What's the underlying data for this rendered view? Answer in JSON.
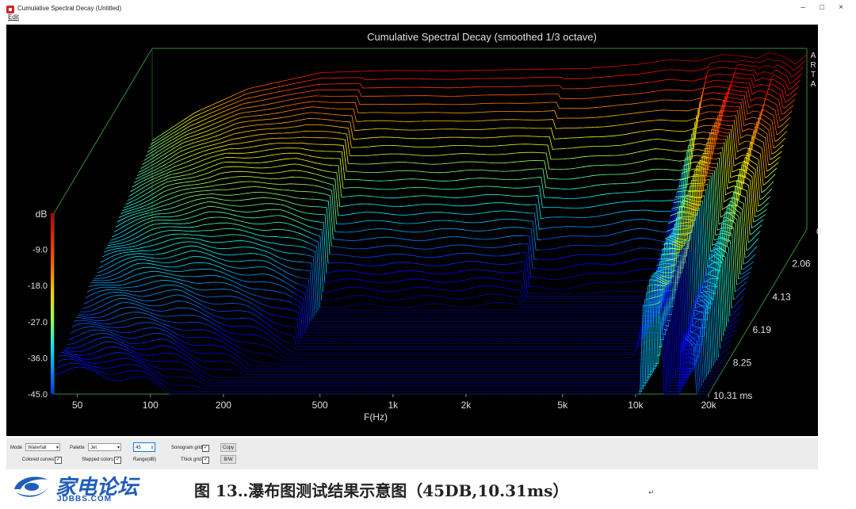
{
  "window": {
    "title": "Cumulative Spectral Decay  (Untitled)",
    "menu_edit": "Edit",
    "minimize": "–",
    "maximize": "□",
    "close": "×"
  },
  "chart_data": {
    "type": "waterfall",
    "title": "Cumulative Spectral Decay (smoothed 1/3 octave)",
    "watermark": "ARTA",
    "xlabel": "F(Hz)",
    "x_scale": "log",
    "x_ticks": [
      "50",
      "100",
      "200",
      "500",
      "1k",
      "2k",
      "5k",
      "10k",
      "20k"
    ],
    "x_tick_values": [
      50,
      100,
      200,
      500,
      1000,
      2000,
      5000,
      10000,
      20000
    ],
    "xlim": [
      40,
      20000
    ],
    "ylabel": "dB",
    "y_ticks": [
      "-9.0",
      "-18.0",
      "-27.0",
      "-36.0",
      "-45.0"
    ],
    "y_tick_values": [
      -9,
      -18,
      -27,
      -36,
      -45
    ],
    "ylim": [
      -45,
      0
    ],
    "right_zero": "0",
    "z_label": "ms",
    "z_ticks": [
      "2.06",
      "4.13",
      "6.19",
      "8.25",
      "10.31 ms"
    ],
    "z_tick_values": [
      2.06,
      4.13,
      6.19,
      8.25,
      10.31
    ],
    "zlim": [
      0,
      10.31
    ],
    "palette": "Jet",
    "grid": true,
    "curves_shown": 60,
    "initial_response_profile": {
      "freq": [
        40,
        60,
        100,
        200,
        400,
        700,
        1000,
        1500,
        2500,
        4000,
        5500,
        7000,
        9000,
        11000,
        12500,
        14000,
        16000,
        18000,
        20000
      ],
      "level_db": [
        -23,
        -16,
        -10,
        -6,
        -5.5,
        -5.6,
        -5.4,
        -5.2,
        -5.0,
        -4.0,
        -2.8,
        -3.2,
        -1.5,
        -2.0,
        -2.5,
        -1.0,
        -2.0,
        -4.0,
        -1.5
      ]
    }
  },
  "controls": {
    "mode_label": "Mode",
    "mode_value": "Waterfall",
    "palette_label": "Palette",
    "palette_value": "Jet",
    "range_value": "45",
    "range_label": "Range(dB)",
    "colored_curves_label": "Colored curves",
    "stepped_colors_label": "Stepped colors",
    "sonogram_grid_label": "Sonogram grid",
    "thick_grid_label": "Thick grid",
    "copy_label": "Copy",
    "bw_label": "B/W",
    "check_mark": "✓"
  },
  "footer": {
    "logo_cn": "家电论坛",
    "logo_en": "JDBBS.COM",
    "caption": "图 13‥瀑布图测试结果示意图（45DB,10.31ms）",
    "return_mark": "↵"
  }
}
